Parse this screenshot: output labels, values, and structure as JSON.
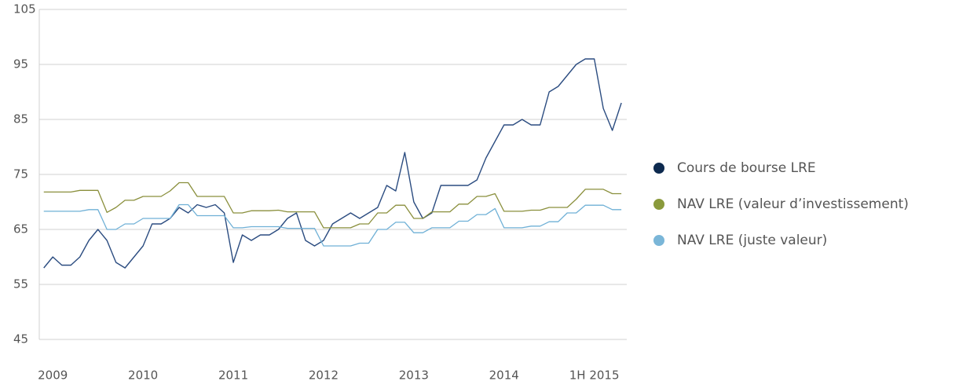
{
  "chart_data": {
    "type": "line",
    "x": [
      2008.9,
      2009.0,
      2009.1,
      2009.2,
      2009.3,
      2009.4,
      2009.5,
      2009.6,
      2009.7,
      2009.8,
      2009.9,
      2010.0,
      2010.1,
      2010.2,
      2010.3,
      2010.4,
      2010.5,
      2010.6,
      2010.7,
      2010.8,
      2010.9,
      2011.0,
      2011.1,
      2011.2,
      2011.3,
      2011.4,
      2011.5,
      2011.6,
      2011.7,
      2011.8,
      2011.9,
      2012.0,
      2012.1,
      2012.2,
      2012.3,
      2012.4,
      2012.5,
      2012.6,
      2012.7,
      2012.8,
      2012.9,
      2013.0,
      2013.1,
      2013.2,
      2013.3,
      2013.4,
      2013.5,
      2013.6,
      2013.7,
      2013.8,
      2013.9,
      2014.0,
      2014.1,
      2014.2,
      2014.3,
      2014.4,
      2014.5,
      2014.6,
      2014.7,
      2014.8,
      2014.9,
      2015.0,
      2015.1,
      2015.2,
      2015.3
    ],
    "series": [
      {
        "name": "Cours de bourse LRE",
        "color": "#2b4c80",
        "marker_color": "#0d2a4f",
        "values": [
          58,
          60,
          58.5,
          58.5,
          60,
          63,
          65,
          63,
          59,
          58,
          60,
          62,
          66,
          66,
          67,
          69,
          68,
          69.5,
          69,
          69.5,
          68,
          59,
          64,
          63,
          64,
          64,
          65,
          67,
          68,
          63,
          62,
          63,
          66,
          67,
          68,
          67,
          68,
          69,
          73,
          72,
          79,
          70,
          67,
          68,
          73,
          73,
          73,
          73,
          74,
          78,
          81,
          84,
          84,
          85,
          84,
          84,
          90,
          91,
          93,
          95,
          96,
          96,
          87,
          83,
          88
        ]
      },
      {
        "name": "NAV LRE (valeur d’investissement)",
        "color": "#8a8f3c",
        "marker_color": "#8a9a3c",
        "values": [
          71.8,
          71.8,
          71.8,
          71.8,
          72.1,
          72.1,
          72.1,
          68.1,
          69,
          70.3,
          70.3,
          71,
          71,
          71,
          72,
          73.5,
          73.5,
          71,
          71,
          71,
          71,
          68,
          68,
          68.4,
          68.4,
          68.4,
          68.5,
          68.2,
          68.2,
          68.2,
          68.2,
          65.3,
          65.3,
          65.3,
          65.3,
          66,
          66,
          68,
          68,
          69.4,
          69.4,
          67,
          67,
          68.2,
          68.2,
          68.2,
          69.6,
          69.6,
          71,
          71,
          71.5,
          68.3,
          68.3,
          68.3,
          68.5,
          68.5,
          69,
          69,
          69,
          70.5,
          72.3,
          72.3,
          72.3,
          71.5,
          71.5
        ]
      },
      {
        "name": "NAV LRE (juste valeur)",
        "color": "#6fb0d6",
        "marker_color": "#7ab6d8",
        "values": [
          68.3,
          68.3,
          68.3,
          68.3,
          68.3,
          68.6,
          68.6,
          65,
          65,
          66,
          66,
          67,
          67,
          67,
          67,
          69.5,
          69.5,
          67.5,
          67.5,
          67.5,
          67.5,
          65.3,
          65.3,
          65.5,
          65.5,
          65.5,
          65.5,
          65.2,
          65.2,
          65.2,
          65.2,
          62,
          62,
          62,
          62,
          62.5,
          62.5,
          65,
          65,
          66.3,
          66.3,
          64.4,
          64.4,
          65.3,
          65.3,
          65.3,
          66.5,
          66.5,
          67.7,
          67.7,
          68.8,
          65.3,
          65.3,
          65.3,
          65.6,
          65.6,
          66.4,
          66.4,
          68,
          68,
          69.4,
          69.4,
          69.4,
          68.6,
          68.6
        ]
      }
    ],
    "xlim": [
      2008.85,
      2015.36
    ],
    "xticks": [
      2009,
      2010,
      2011,
      2012,
      2013,
      2014,
      {
        "value": 2015,
        "label": "1H 2015"
      }
    ],
    "ylim": [
      45,
      105
    ],
    "yticks": [
      45,
      55,
      65,
      75,
      85,
      95,
      105
    ],
    "grid": true,
    "legend": "right"
  }
}
